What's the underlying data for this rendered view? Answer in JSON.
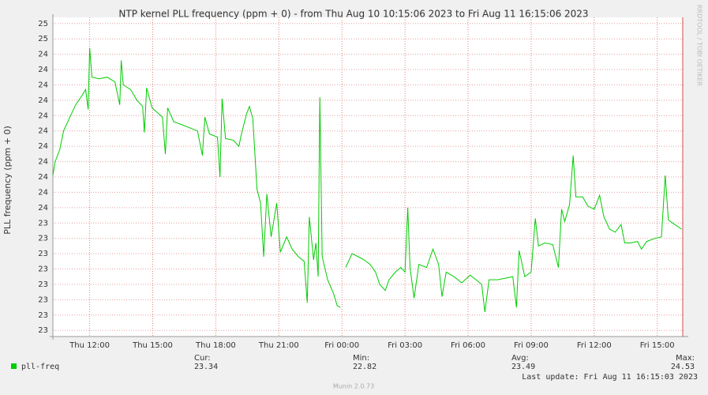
{
  "chart_data": {
    "type": "line",
    "title": "NTP kernel PLL frequency (ppm + 0) - from Thu Aug 10 10:15:06 2023 to Fri Aug 11 16:15:06 2023",
    "y_label": "PLL frequency (ppm + 0)",
    "side_text": "RRDTOOL / TOBI OETIKER",
    "footer": "Munin 2.0.73",
    "last_update": "Last update:  Fri Aug 11 16:15:03 2023",
    "xlim": [
      10.25,
      40.25
    ],
    "ylim": [
      22.66,
      24.74
    ],
    "grid": true,
    "xticks": [
      {
        "value": 12,
        "label": "Thu 12:00"
      },
      {
        "value": 15,
        "label": "Thu 15:00"
      },
      {
        "value": 18,
        "label": "Thu 18:00"
      },
      {
        "value": 21,
        "label": "Thu 21:00"
      },
      {
        "value": 24,
        "label": "Fri 00:00"
      },
      {
        "value": 27,
        "label": "Fri 03:00"
      },
      {
        "value": 30,
        "label": "Fri 06:00"
      },
      {
        "value": 33,
        "label": "Fri 09:00"
      },
      {
        "value": 36,
        "label": "Fri 12:00"
      },
      {
        "value": 39,
        "label": "Fri 15:00"
      }
    ],
    "yticks": [
      {
        "value": 24.7,
        "label": "25"
      },
      {
        "value": 24.6,
        "label": "25"
      },
      {
        "value": 24.5,
        "label": "24"
      },
      {
        "value": 24.4,
        "label": "24"
      },
      {
        "value": 24.3,
        "label": "24"
      },
      {
        "value": 24.2,
        "label": "24"
      },
      {
        "value": 24.1,
        "label": "24"
      },
      {
        "value": 24.0,
        "label": "24"
      },
      {
        "value": 23.9,
        "label": "24"
      },
      {
        "value": 23.8,
        "label": "24"
      },
      {
        "value": 23.7,
        "label": "24"
      },
      {
        "value": 23.6,
        "label": "24"
      },
      {
        "value": 23.5,
        "label": "24"
      },
      {
        "value": 23.4,
        "label": "23"
      },
      {
        "value": 23.3,
        "label": "23"
      },
      {
        "value": 23.2,
        "label": "23"
      },
      {
        "value": 23.1,
        "label": "23"
      },
      {
        "value": 23.0,
        "label": "23"
      },
      {
        "value": 22.9,
        "label": "23"
      },
      {
        "value": 22.8,
        "label": "23"
      },
      {
        "value": 22.7,
        "label": "23"
      }
    ],
    "series": [
      {
        "name": "pll-freq",
        "color": "#00cc00",
        "x": [
          10.25,
          10.36,
          10.58,
          10.76,
          11.06,
          11.33,
          11.63,
          11.81,
          11.93,
          12.0,
          12.11,
          12.45,
          12.83,
          13.2,
          13.43,
          13.5,
          13.6,
          13.95,
          14.25,
          14.52,
          14.6,
          14.71,
          14.97,
          15.46,
          15.6,
          15.71,
          16.0,
          16.4,
          16.76,
          17.13,
          17.36,
          17.48,
          17.7,
          18.08,
          18.2,
          18.3,
          18.46,
          18.83,
          19.1,
          19.2,
          19.46,
          19.6,
          19.76,
          19.96,
          20.13,
          20.28,
          20.43,
          20.63,
          20.9,
          21.07,
          21.37,
          21.63,
          21.93,
          22.2,
          22.35,
          22.45,
          22.65,
          22.76,
          22.87,
          22.95,
          23.06,
          23.32,
          23.6,
          23.78,
          23.93,
          24.05,
          24.18,
          24.48,
          24.78,
          25.05,
          25.34,
          25.6,
          25.8,
          26.06,
          26.24,
          26.54,
          26.8,
          27.0,
          27.13,
          27.24,
          27.43,
          27.66,
          28.03,
          28.33,
          28.6,
          28.76,
          28.96,
          29.33,
          29.7,
          30.1,
          30.38,
          30.65,
          30.8,
          31.0,
          31.4,
          31.76,
          32.13,
          32.3,
          32.43,
          32.7,
          33.0,
          33.2,
          33.35,
          33.65,
          34.03,
          34.3,
          34.45,
          34.6,
          34.83,
          35.0,
          35.13,
          35.45,
          35.7,
          36.0,
          36.26,
          36.46,
          36.73,
          37.0,
          37.28,
          37.45,
          37.76,
          38.06,
          38.25,
          38.5,
          38.9,
          39.2,
          39.38,
          39.53,
          39.83,
          40.16
        ],
        "values": [
          23.71,
          23.8,
          23.88,
          24.0,
          24.09,
          24.17,
          24.23,
          24.27,
          24.14,
          24.54,
          24.35,
          24.34,
          24.35,
          24.32,
          24.17,
          24.46,
          24.3,
          24.27,
          24.2,
          24.16,
          23.99,
          24.28,
          24.15,
          24.09,
          23.85,
          24.15,
          24.06,
          24.04,
          24.02,
          24.0,
          23.84,
          24.09,
          23.98,
          23.96,
          23.7,
          24.21,
          23.95,
          23.94,
          23.9,
          23.97,
          24.11,
          24.16,
          24.08,
          23.62,
          23.53,
          23.18,
          23.59,
          23.31,
          23.53,
          23.21,
          23.31,
          23.23,
          23.18,
          23.15,
          22.88,
          23.44,
          23.16,
          23.27,
          23.05,
          24.22,
          23.18,
          23.03,
          22.94,
          22.86,
          22.85,
          null,
          23.11,
          23.2,
          23.18,
          23.16,
          23.13,
          23.08,
          23.0,
          22.96,
          23.03,
          23.08,
          23.11,
          23.08,
          23.5,
          23.11,
          22.91,
          23.13,
          23.11,
          23.23,
          23.13,
          22.92,
          23.08,
          23.05,
          23.01,
          23.06,
          23.03,
          23.0,
          22.82,
          23.03,
          23.03,
          23.04,
          23.05,
          22.85,
          23.22,
          23.05,
          23.08,
          23.43,
          23.25,
          23.27,
          23.26,
          23.11,
          23.49,
          23.41,
          23.52,
          23.84,
          23.57,
          23.57,
          23.51,
          23.49,
          23.58,
          23.44,
          23.36,
          23.34,
          23.39,
          23.27,
          23.27,
          23.28,
          23.23,
          23.28,
          23.3,
          23.31,
          23.71,
          23.42,
          23.39,
          23.36
        ]
      }
    ],
    "stats": [
      {
        "label": "Cur:",
        "value": 23.34
      },
      {
        "label": "Min:",
        "value": 22.82
      },
      {
        "label": "Avg:",
        "value": 23.49
      },
      {
        "label": "Max:",
        "value": 24.53
      }
    ]
  }
}
